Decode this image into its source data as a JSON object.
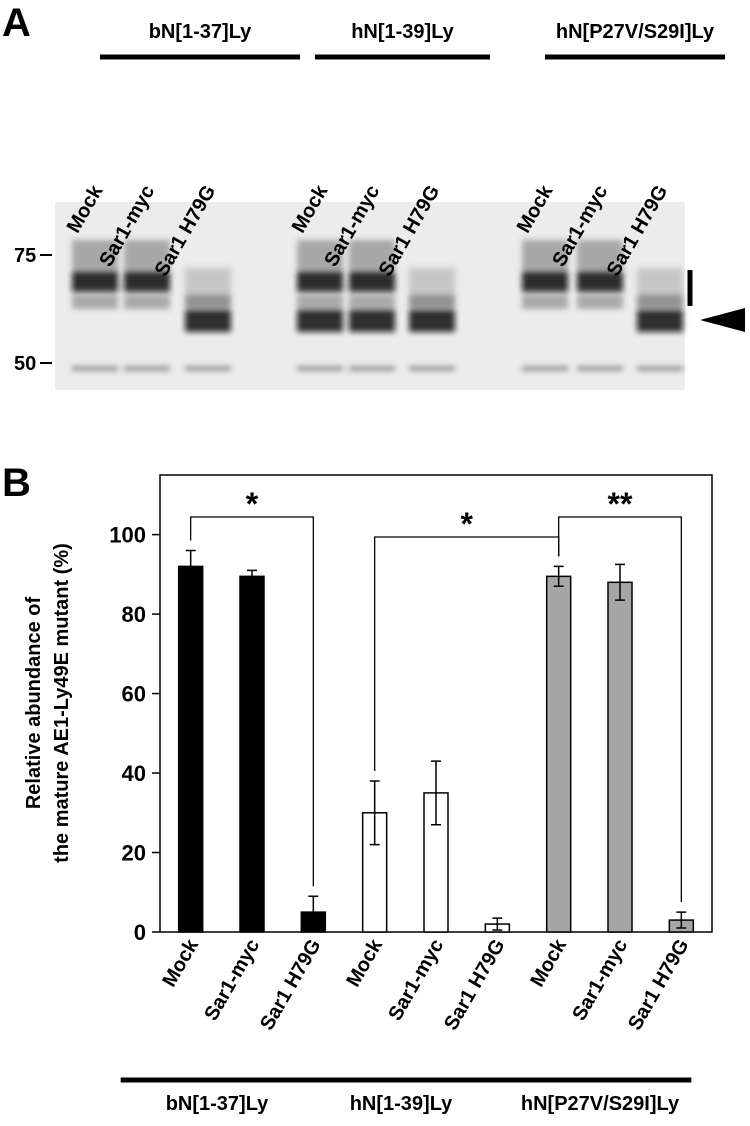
{
  "panel_a": {
    "label": "A",
    "groups": [
      {
        "name": "bN[1-37]Ly",
        "lanes": [
          "Mock",
          "Sar1-myc",
          "Sar1 H79G"
        ]
      },
      {
        "name": "hN[1-39]Ly",
        "lanes": [
          "Mock",
          "Sar1-myc",
          "Sar1 H79G"
        ]
      },
      {
        "name": "hN[P27V/S29I]Ly",
        "lanes": [
          "Mock",
          "Sar1-myc",
          "Sar1 H79G"
        ]
      }
    ],
    "markers": [
      "75",
      "50"
    ]
  },
  "chart_data": {
    "type": "bar",
    "panel_label": "B",
    "y_label": [
      "Relative abundance of",
      "the mature AE1-Ly49E mutant (%)"
    ],
    "groups": [
      {
        "name": "bN[1-37]Ly",
        "color": "#000000",
        "categories": [
          "Mock",
          "Sar1-myc",
          "Sar1 H79G"
        ],
        "values": [
          92,
          89.5,
          5
        ],
        "errors": [
          4,
          1.5,
          4
        ]
      },
      {
        "name": "hN[1-39]Ly",
        "color": "#ffffff",
        "categories": [
          "Mock",
          "Sar1-myc",
          "Sar1 H79G"
        ],
        "values": [
          30,
          35,
          2
        ],
        "errors": [
          8,
          8,
          1.5
        ]
      },
      {
        "name": "hN[P27V/S29I]Ly",
        "color": "#a6a6a6",
        "categories": [
          "Mock",
          "Sar1-myc",
          "Sar1 H79G"
        ],
        "values": [
          89.5,
          88,
          3
        ],
        "errors": [
          2.5,
          4.5,
          2
        ]
      }
    ],
    "significance": [
      {
        "from": 0,
        "to": 2,
        "label": "*"
      },
      {
        "from": 3,
        "to": 6,
        "label": "*"
      },
      {
        "from": 6,
        "to": 8,
        "label": "**"
      }
    ],
    "ylim": [
      0,
      115
    ],
    "yticks": [
      0,
      20,
      40,
      60,
      80,
      100
    ]
  }
}
